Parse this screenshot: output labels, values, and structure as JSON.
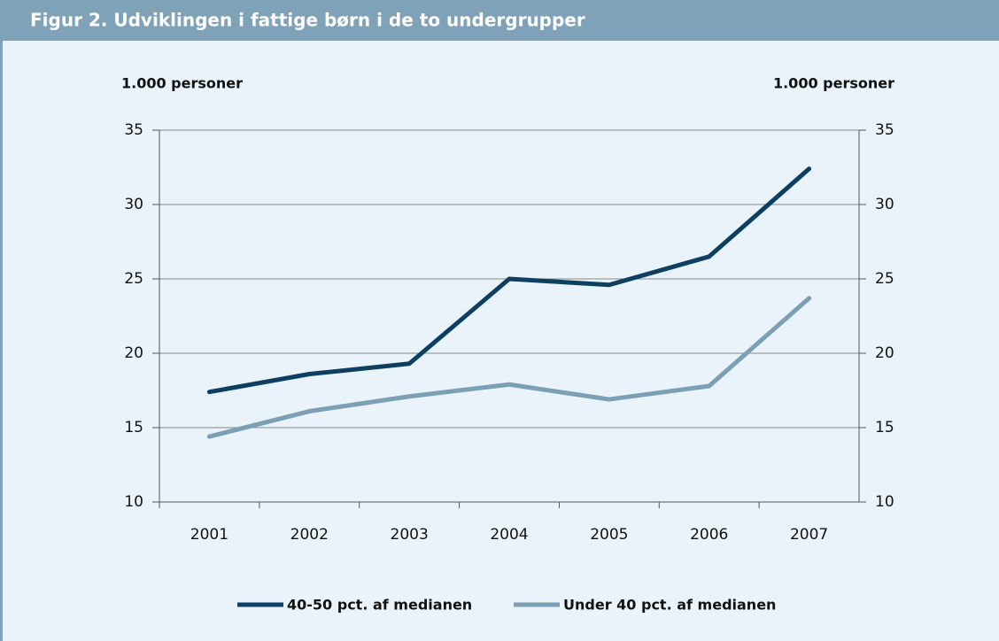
{
  "chart_data": {
    "type": "line",
    "title": "Figur 2. Udviklingen i fattige børn i de to undergrupper",
    "y_label": "1.000 personer",
    "y2_label": "1.000 personer",
    "categories": [
      "2001",
      "2002",
      "2003",
      "2004",
      "2005",
      "2006",
      "2007"
    ],
    "series": [
      {
        "name": "40-50 pct. af medianen",
        "color": "#0c3f62",
        "values": [
          17.4,
          18.6,
          19.3,
          25.0,
          24.6,
          26.5,
          32.4
        ]
      },
      {
        "name": "Under 40 pct. af medianen",
        "color": "#7b9fb5",
        "values": [
          14.4,
          16.1,
          17.1,
          17.9,
          16.9,
          17.8,
          23.7
        ]
      }
    ],
    "ylim": [
      10,
      35
    ],
    "yticks": [
      10,
      15,
      20,
      25,
      30,
      35
    ],
    "y2lim": [
      10,
      35
    ],
    "y2ticks": [
      10,
      15,
      20,
      25,
      30,
      35
    ],
    "grid": true
  }
}
